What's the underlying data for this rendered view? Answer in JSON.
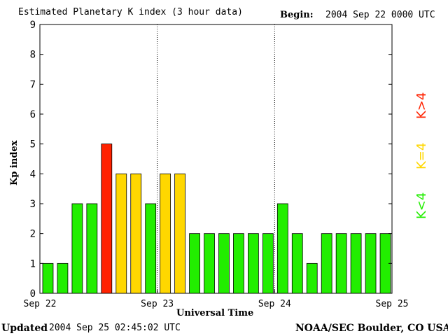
{
  "header": {
    "title": "Estimated Planetary K index (3 hour data)",
    "begin_label": "Begin:",
    "begin_value": "2004 Sep 22 0000 UTC"
  },
  "footer": {
    "updated_label": "Updated",
    "updated_value": "2004 Sep 25 02:45:02 UTC",
    "source": "NOAA/SEC Boulder, CO USA"
  },
  "legend": {
    "high": {
      "label": "K>4",
      "color": "#ff2200"
    },
    "mid": {
      "label": "K=4",
      "color": "#ffd700"
    },
    "low": {
      "label": "K<4",
      "color": "#22ee00"
    }
  },
  "chart_data": {
    "type": "bar",
    "xlabel": "Universal Time",
    "ylabel": "Kp index",
    "ylim": [
      0,
      9
    ],
    "yticks": [
      0,
      1,
      2,
      3,
      4,
      5,
      6,
      7,
      8,
      9
    ],
    "xtick_labels": [
      "Sep 22",
      "Sep 23",
      "Sep 24",
      "Sep 25"
    ],
    "grid": "dotted vertical lines at day boundaries",
    "values": [
      1,
      1,
      3,
      3,
      5,
      4,
      4,
      3,
      4,
      4,
      2,
      2,
      2,
      2,
      2,
      2,
      3,
      2,
      1,
      2,
      2,
      2,
      2,
      2
    ]
  }
}
